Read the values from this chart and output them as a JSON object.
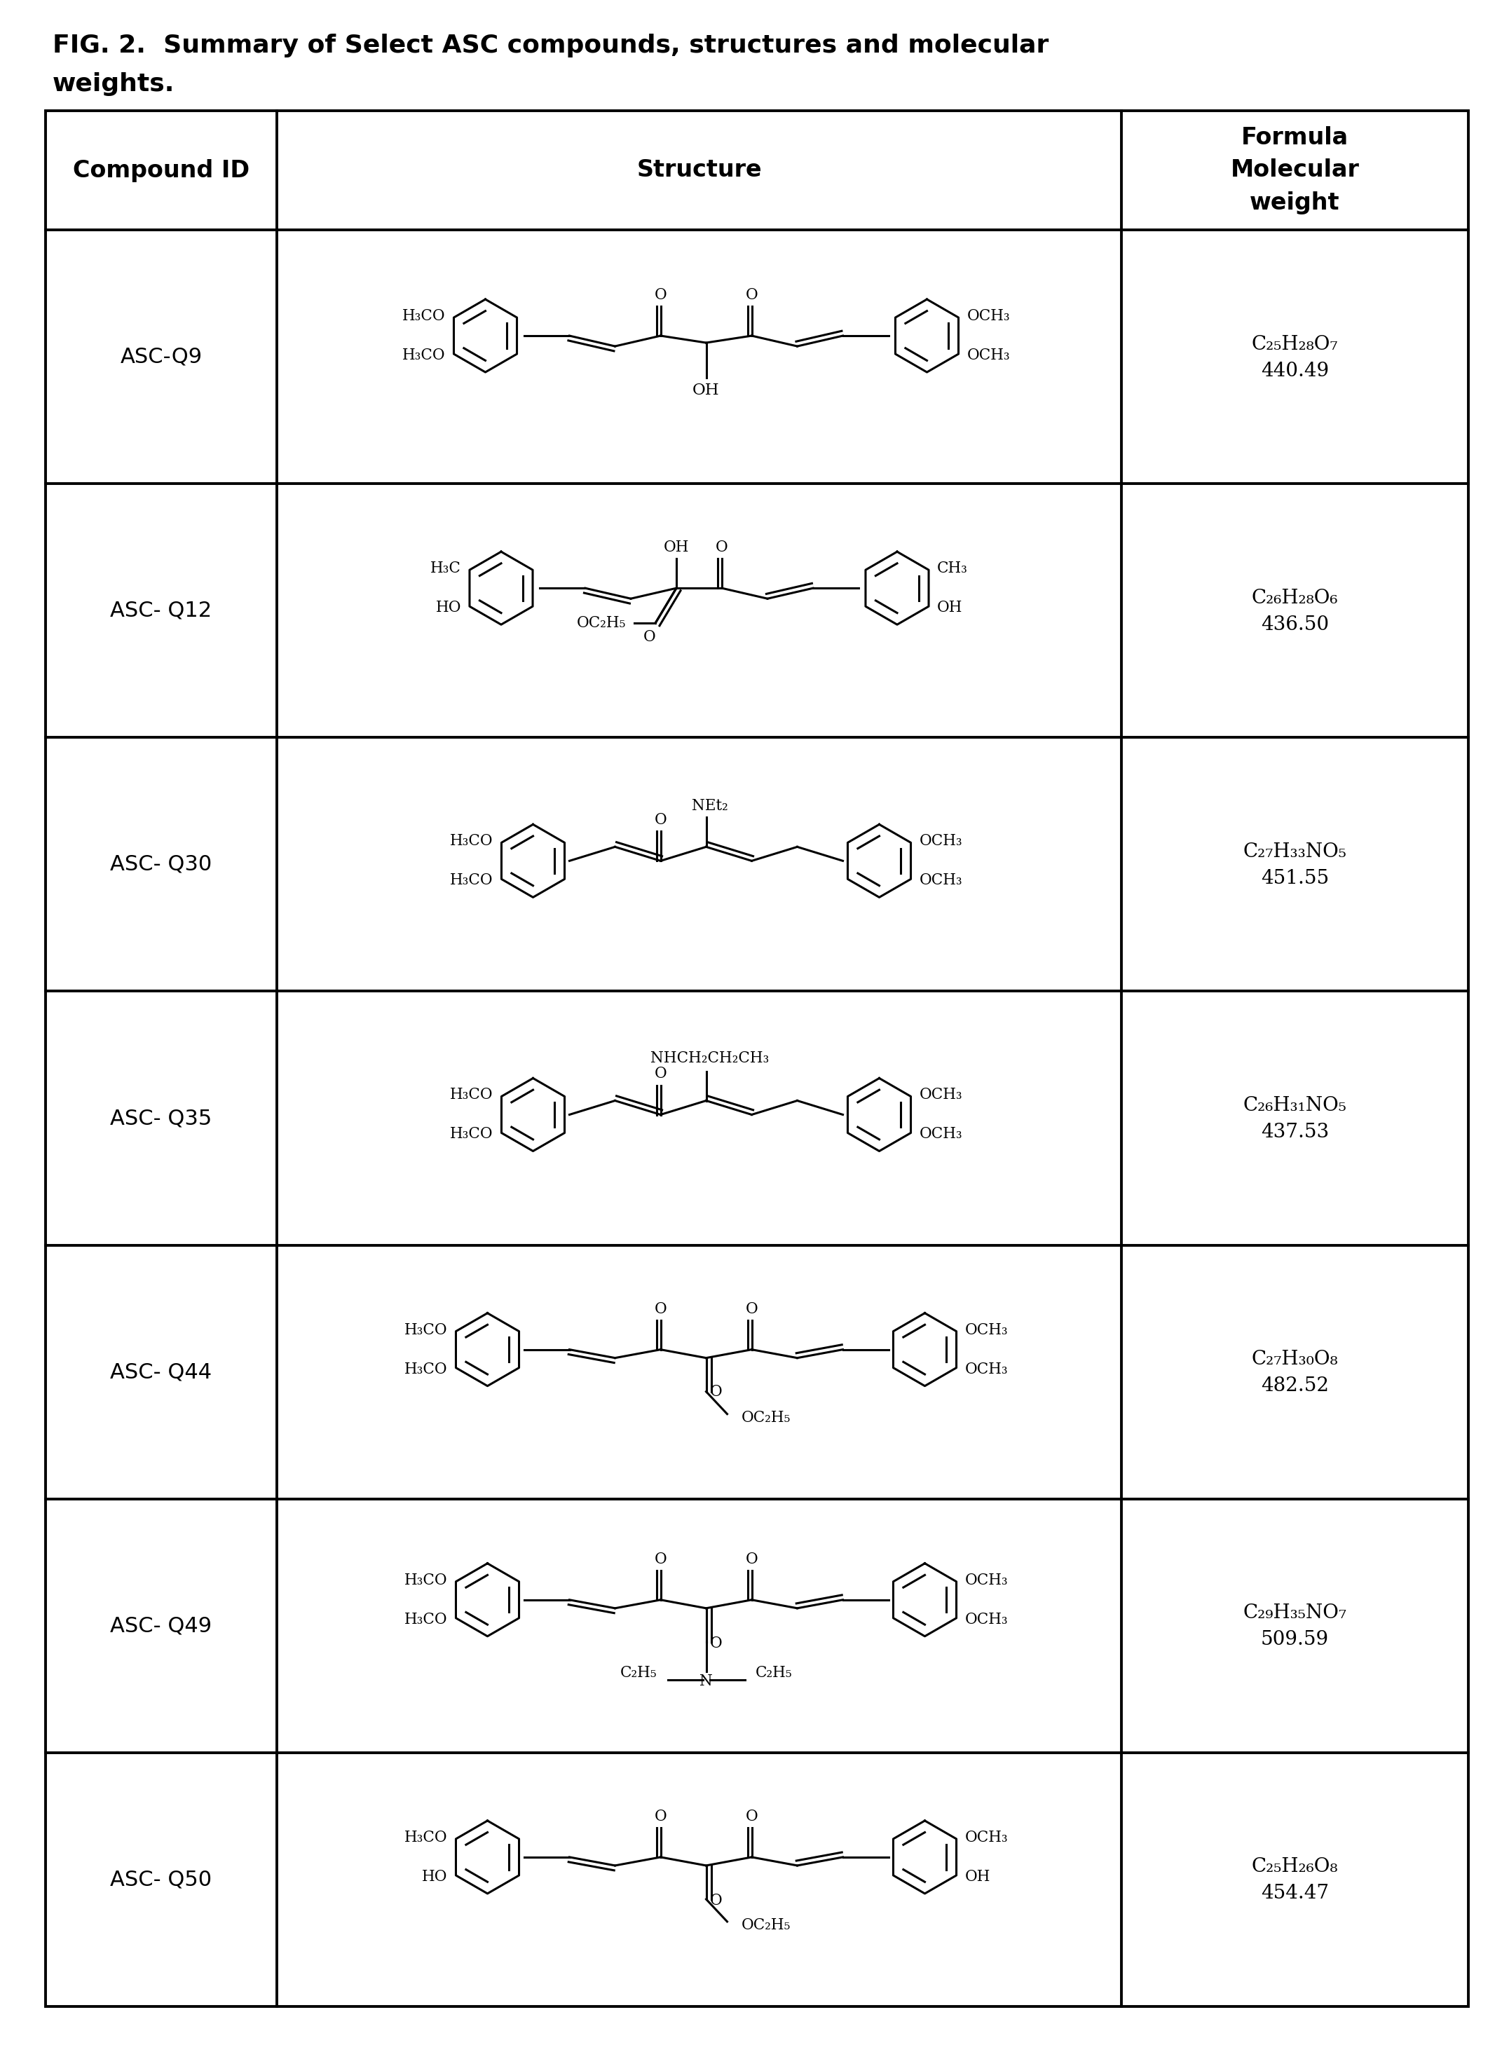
{
  "title_line1": "FIG. 2.  Summary of Select ASC compounds, structures and molecular",
  "title_line2": "weights.",
  "compounds": [
    {
      "id": "ASC-Q9",
      "formula_line1": "C₂₅H₂₈O₇",
      "formula_line2": "440.49"
    },
    {
      "id": "ASC- Q12",
      "formula_line1": "C₂₆H₂₈O₆",
      "formula_line2": "436.50"
    },
    {
      "id": "ASC- Q30",
      "formula_line1": "C₂₇H₃₃NO₅",
      "formula_line2": "451.55"
    },
    {
      "id": "ASC- Q35",
      "formula_line1": "C₂₆H₃₁NO₅",
      "formula_line2": "437.53"
    },
    {
      "id": "ASC- Q44",
      "formula_line1": "C₂₇H₃₀O₈",
      "formula_line2": "482.52"
    },
    {
      "id": "ASC- Q49",
      "formula_line1": "C₂₉H₃₅NO₇",
      "formula_line2": "509.59"
    },
    {
      "id": "ASC- Q50",
      "formula_line1": "C₂₅H₂₆O₈",
      "formula_line2": "454.47"
    }
  ],
  "bg_color": "#ffffff",
  "text_color": "#000000",
  "line_color": "#000000",
  "title_fontsize": 26,
  "header_fontsize": 24,
  "cell_fontsize": 22,
  "formula_fontsize": 20
}
